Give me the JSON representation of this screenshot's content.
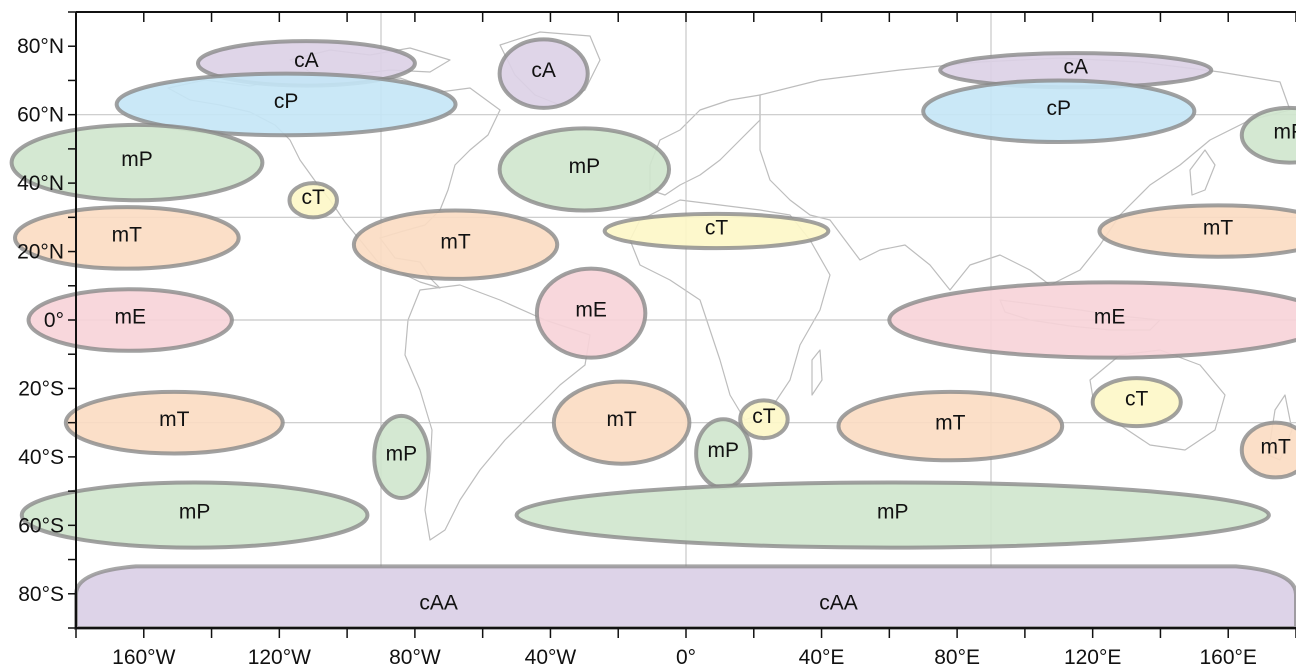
{
  "map": {
    "projection": "equirectangular",
    "lon_range": [
      -180,
      180
    ],
    "lat_range": [
      -90,
      90
    ],
    "grid_lon": [
      -90,
      0,
      90
    ],
    "grid_lat": [
      -30,
      0,
      30,
      60
    ],
    "lat_ticks": [
      {
        "lat": 80,
        "label": "80°N"
      },
      {
        "lat": 60,
        "label": "60°N"
      },
      {
        "lat": 40,
        "label": "40°N"
      },
      {
        "lat": 20,
        "label": "20°N"
      },
      {
        "lat": 0,
        "label": "0°"
      },
      {
        "lat": -20,
        "label": "20°S"
      },
      {
        "lat": -40,
        "label": "40°S"
      },
      {
        "lat": -60,
        "label": "60°S"
      },
      {
        "lat": -80,
        "label": "80°S"
      }
    ],
    "lon_ticks": [
      {
        "lon": -160,
        "label": "160°W"
      },
      {
        "lon": -120,
        "label": "120°W"
      },
      {
        "lon": -80,
        "label": "80°W"
      },
      {
        "lon": -40,
        "label": "40°W"
      },
      {
        "lon": 0,
        "label": "0°"
      },
      {
        "lon": 40,
        "label": "40°E"
      },
      {
        "lon": 80,
        "label": "80°E"
      },
      {
        "lon": 120,
        "label": "120°E"
      },
      {
        "lon": 160,
        "label": "160°E"
      }
    ],
    "colors": {
      "cA": "#dcd0e6",
      "cP": "#c4e6f6",
      "mP": "#cfe6cd",
      "cT": "#fdf7c6",
      "mT": "#fbdcc2",
      "mE": "#f7d3d8",
      "cAA": "#ddd3e8",
      "outline": "#8a8a8a",
      "coast": "#bdbdbd",
      "grid": "#c8c8c8"
    },
    "air_masses": [
      {
        "label": "cA",
        "lon": -112,
        "lat": 75,
        "rlon": 32,
        "rlat": 6.5
      },
      {
        "label": "cA",
        "lon": -42,
        "lat": 72,
        "rlon": 13,
        "rlat": 10
      },
      {
        "label": "cP",
        "lon": -118,
        "lat": 63,
        "rlon": 50,
        "rlat": 9
      },
      {
        "label": "mP",
        "lon": -162,
        "lat": 46,
        "rlon": 37,
        "rlat": 11
      },
      {
        "label": "mP",
        "lon": -30,
        "lat": 44,
        "rlon": 25,
        "rlat": 12
      },
      {
        "label": "cT",
        "lon": -110,
        "lat": 35,
        "rlon": 7,
        "rlat": 5
      },
      {
        "label": "mT",
        "lon": -165,
        "lat": 24,
        "rlon": 33,
        "rlat": 9
      },
      {
        "label": "mT",
        "lon": -68,
        "lat": 22,
        "rlon": 30,
        "rlat": 10
      },
      {
        "label": "cT",
        "lon": 9,
        "lat": 26,
        "rlon": 33,
        "rlat": 5
      },
      {
        "label": "mE",
        "lon": -164,
        "lat": 0,
        "rlon": 30,
        "rlat": 9
      },
      {
        "label": "mE",
        "lon": -28,
        "lat": 2,
        "rlon": 16,
        "rlat": 13
      },
      {
        "label": "mE",
        "lon": 125,
        "lat": 0,
        "rlon": 65,
        "rlat": 11
      },
      {
        "label": "cA",
        "lon": 115,
        "lat": 73,
        "rlon": 40,
        "rlat": 5
      },
      {
        "label": "cP",
        "lon": 110,
        "lat": 61,
        "rlon": 40,
        "rlat": 9
      },
      {
        "label": "mP",
        "lon": 178,
        "lat": 54,
        "rlon": 14,
        "rlat": 8
      },
      {
        "label": "mT",
        "lon": 157,
        "lat": 26,
        "rlon": 35,
        "rlat": 7.5
      },
      {
        "label": "cT",
        "lon": 133,
        "lat": -24,
        "rlon": 13,
        "rlat": 7
      },
      {
        "label": "mT",
        "lon": 174,
        "lat": -38,
        "rlon": 10,
        "rlat": 8
      },
      {
        "label": "mT",
        "lon": -151,
        "lat": -30,
        "rlon": 32,
        "rlat": 9
      },
      {
        "label": "mP",
        "lon": -84,
        "lat": -40,
        "rlon": 8,
        "rlat": 12
      },
      {
        "label": "mT",
        "lon": -19,
        "lat": -30,
        "rlon": 20,
        "rlat": 12
      },
      {
        "label": "mP",
        "lon": 11,
        "lat": -39,
        "rlon": 8,
        "rlat": 10
      },
      {
        "label": "cT",
        "lon": 23,
        "lat": -29,
        "rlon": 7,
        "rlat": 5.5
      },
      {
        "label": "mT",
        "lon": 78,
        "lat": -31,
        "rlon": 33,
        "rlat": 10
      },
      {
        "label": "mP",
        "lon": -145,
        "lat": -57,
        "rlon": 51,
        "rlat": 9.5
      },
      {
        "label": "mP",
        "lon": 61,
        "lat": -57,
        "rlon": 111,
        "rlat": 9.5
      }
    ],
    "antarctic": {
      "label": "cAA",
      "label_lons": [
        -73,
        45
      ],
      "label_lat": -83,
      "top_lat": -72
    }
  }
}
